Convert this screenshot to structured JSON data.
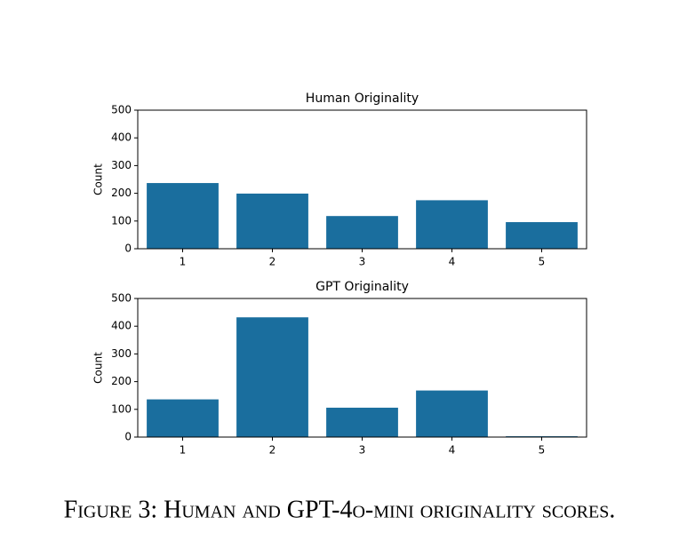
{
  "chart_data": [
    {
      "type": "bar",
      "title": "Human Originality",
      "y_label": "Count",
      "categories": [
        "1",
        "2",
        "3",
        "4",
        "5"
      ],
      "values": [
        237,
        199,
        118,
        175,
        96
      ],
      "color": "#1a6e9e",
      "ylim": [
        0,
        500
      ],
      "yticks": [
        0,
        100,
        200,
        300,
        400,
        500
      ]
    },
    {
      "type": "bar",
      "title": "GPT Originality",
      "y_label": "Count",
      "categories": [
        "1",
        "2",
        "3",
        "4",
        "5"
      ],
      "values": [
        136,
        432,
        106,
        168,
        3
      ],
      "color": "#1a6e9e",
      "ylim": [
        0,
        500
      ],
      "yticks": [
        0,
        100,
        200,
        300,
        400,
        500
      ]
    }
  ],
  "caption": "Figure 3: Human and GPT-4o-mini originality scores."
}
